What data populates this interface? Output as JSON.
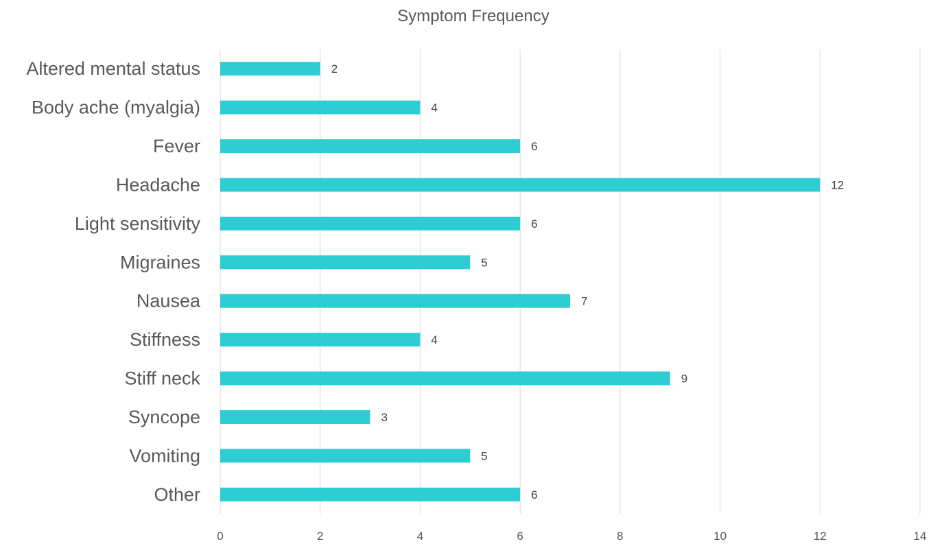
{
  "chart_data": {
    "type": "bar",
    "orientation": "horizontal",
    "title": "Symptom Frequency",
    "categories": [
      "Altered mental status",
      "Body ache (myalgia)",
      "Fever",
      "Headache",
      "Light sensitivity",
      "Migraines",
      "Nausea",
      "Stiffness",
      "Stiff neck",
      "Syncope",
      "Vomiting",
      "Other"
    ],
    "values": [
      2,
      4,
      6,
      12,
      6,
      5,
      7,
      4,
      9,
      3,
      5,
      6
    ],
    "xlim": [
      0,
      14
    ],
    "x_ticks": [
      0,
      2,
      4,
      6,
      8,
      10,
      12,
      14
    ],
    "grid": "vertical",
    "legend": "none",
    "data_labels": true,
    "bar_color": "#2ECCD3"
  }
}
